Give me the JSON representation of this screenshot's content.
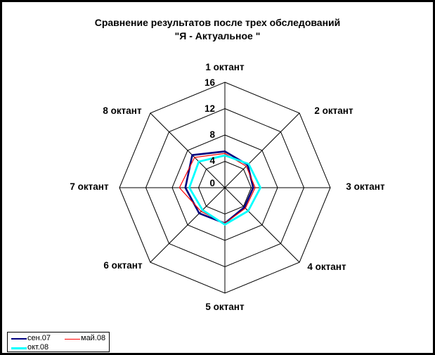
{
  "title": {
    "line1": "Сравнение результатов после трех обследований",
    "line2": "\"Я - Актуальное \""
  },
  "chart_data": {
    "type": "radar",
    "title": "Сравнение результатов после трех обследований \"Я - Актуальное \"",
    "categories": [
      "1 октант",
      "2 октант",
      "3 октант",
      "4 октант",
      "5 октант",
      "6 октант",
      "7 октант",
      "8 октант"
    ],
    "axis_range": [
      0,
      16
    ],
    "rings": [
      4,
      8,
      12,
      16
    ],
    "tick_labels": [
      "0",
      "4",
      "8",
      "12",
      "16"
    ],
    "grid_color": "#000000",
    "legend_position": "bottom-left",
    "series": [
      {
        "name": "сен.07",
        "color": "#000080",
        "values": [
          5.5,
          4.9,
          4.3,
          4.2,
          5.4,
          5.5,
          6.0,
          7.0
        ]
      },
      {
        "name": "май.08",
        "color": "#FF0000",
        "values": [
          5.2,
          4.6,
          4.6,
          4.4,
          5.4,
          5.1,
          6.9,
          6.5
        ]
      },
      {
        "name": "окт.08",
        "color": "#00FFFF",
        "values": [
          4.9,
          5.1,
          5.4,
          5.0,
          5.6,
          4.8,
          5.4,
          5.6
        ]
      }
    ]
  },
  "legend": {
    "items": [
      {
        "label": "сен.07",
        "color": "#000080"
      },
      {
        "label": "май.08",
        "color": "#FF0000"
      },
      {
        "label": "окт.08",
        "color": "#00FFFF"
      }
    ]
  }
}
